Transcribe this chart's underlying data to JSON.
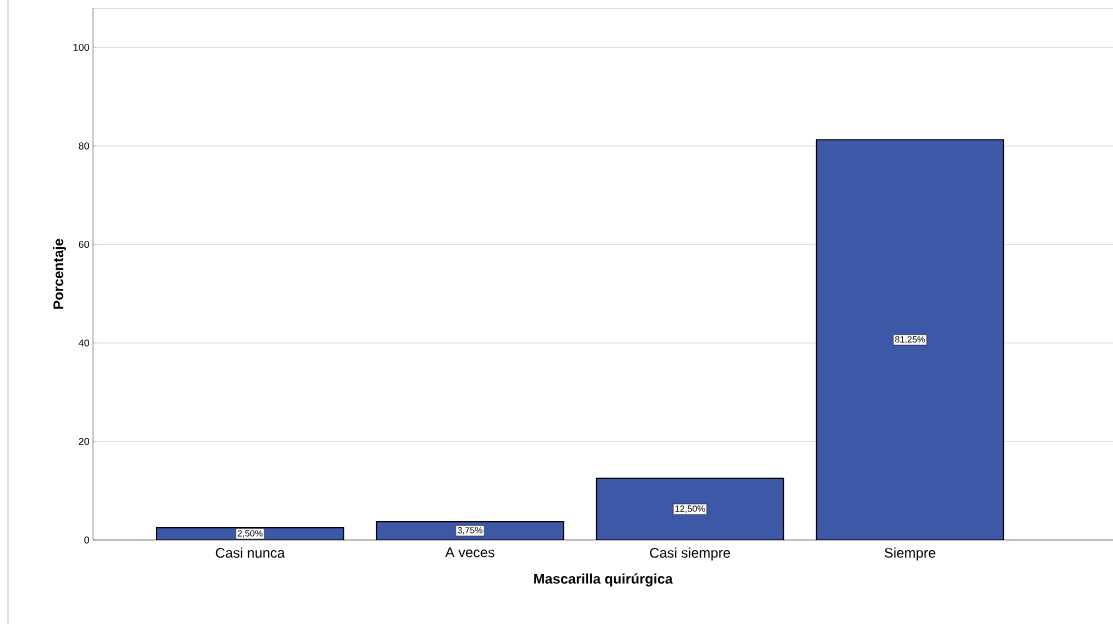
{
  "chart_data": {
    "type": "bar",
    "xlabel": "Mascarilla quirúrgica",
    "ylabel": "Porcentaje",
    "categories": [
      "Casi nunca",
      "A veces",
      "Casi siempre",
      "Siempre"
    ],
    "values": [
      2.5,
      3.75,
      12.5,
      81.25
    ],
    "value_labels": [
      "2,50%",
      "3,75%",
      "12,50%",
      "81,25%"
    ],
    "color": "#3e58a8",
    "ylim": [
      0,
      108
    ],
    "yticks": [
      0,
      20,
      40,
      60,
      80,
      100
    ],
    "grid": "y"
  }
}
